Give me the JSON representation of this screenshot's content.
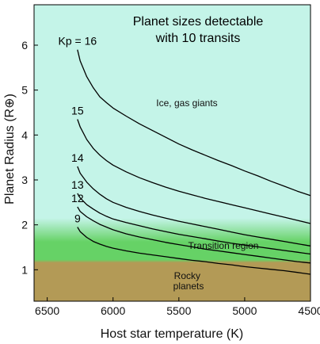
{
  "chart_data": {
    "type": "line",
    "title_lines": [
      "Planet sizes detectable",
      "with 10 transits"
    ],
    "xlabel": "Host star temperature (K)",
    "ylabel": "Planet Radius (R⊕)",
    "xlim": [
      6600,
      4500
    ],
    "ylim": [
      0.3,
      6.9
    ],
    "x_ticks": [
      6500,
      6000,
      5500,
      5000,
      4500
    ],
    "y_ticks": [
      1,
      2,
      3,
      4,
      5,
      6
    ],
    "regions": [
      {
        "label": "Ice, gas giants",
        "y_from": 2.2,
        "y_to": 6.9,
        "color": "#c4f4e8"
      },
      {
        "label": "Transition region",
        "y_from": 1.2,
        "y_to": 2.2,
        "color": "#66d266"
      },
      {
        "label": "Rocky planets",
        "y_from": 0.3,
        "y_to": 1.2,
        "color": "#b39a56"
      }
    ],
    "region_label_lines": {
      "giants": [
        "Ice, gas giants"
      ],
      "transition": [
        "Transition region"
      ],
      "rocky": [
        "Rocky",
        "planets"
      ]
    },
    "series": [
      {
        "label": "Kp = 16",
        "x": [
          6270,
          6250,
          6200,
          6150,
          6100,
          6050,
          6000,
          5900,
          5800,
          5700,
          5600,
          5500,
          5400,
          5300,
          5200,
          5100,
          5000,
          4900,
          4800,
          4700,
          4600,
          4500
        ],
        "y": [
          5.9,
          5.65,
          5.3,
          5.05,
          4.85,
          4.72,
          4.6,
          4.42,
          4.25,
          4.1,
          3.95,
          3.8,
          3.67,
          3.55,
          3.43,
          3.32,
          3.2,
          3.09,
          2.97,
          2.86,
          2.75,
          2.65
        ]
      },
      {
        "label": "15",
        "x": [
          6270,
          6250,
          6200,
          6150,
          6100,
          6050,
          6000,
          5900,
          5800,
          5700,
          5600,
          5500,
          5400,
          5300,
          5200,
          5100,
          5000,
          4900,
          4800,
          4700,
          4600,
          4500
        ],
        "y": [
          4.35,
          4.18,
          3.9,
          3.7,
          3.55,
          3.43,
          3.33,
          3.18,
          3.05,
          2.94,
          2.84,
          2.75,
          2.67,
          2.59,
          2.52,
          2.45,
          2.38,
          2.31,
          2.24,
          2.17,
          2.1,
          2.03
        ]
      },
      {
        "label": "14",
        "x": [
          6270,
          6250,
          6200,
          6150,
          6100,
          6050,
          6000,
          5900,
          5800,
          5700,
          5600,
          5500,
          5400,
          5300,
          5200,
          5100,
          5000,
          4900,
          4800,
          4700,
          4600,
          4500
        ],
        "y": [
          3.3,
          3.15,
          2.95,
          2.8,
          2.68,
          2.58,
          2.5,
          2.39,
          2.3,
          2.22,
          2.15,
          2.08,
          2.02,
          1.96,
          1.9,
          1.84,
          1.78,
          1.73,
          1.68,
          1.63,
          1.58,
          1.53
        ]
      },
      {
        "label": "13",
        "x": [
          6270,
          6250,
          6200,
          6150,
          6100,
          6050,
          6000,
          5900,
          5800,
          5700,
          5600,
          5500,
          5400,
          5300,
          5200,
          5100,
          5000,
          4900,
          4800,
          4700,
          4600,
          4500
        ],
        "y": [
          2.7,
          2.6,
          2.45,
          2.35,
          2.26,
          2.19,
          2.13,
          2.05,
          1.98,
          1.91,
          1.85,
          1.79,
          1.74,
          1.69,
          1.64,
          1.59,
          1.55,
          1.51,
          1.47,
          1.43,
          1.39,
          1.35
        ]
      },
      {
        "label": "12",
        "x": [
          6270,
          6250,
          6200,
          6150,
          6100,
          6050,
          6000,
          5900,
          5800,
          5700,
          5600,
          5500,
          5400,
          5300,
          5200,
          5100,
          5000,
          4900,
          4800,
          4700,
          4600,
          4500
        ],
        "y": [
          2.4,
          2.3,
          2.18,
          2.09,
          2.01,
          1.95,
          1.89,
          1.8,
          1.73,
          1.67,
          1.61,
          1.56,
          1.51,
          1.46,
          1.42,
          1.38,
          1.34,
          1.3,
          1.26,
          1.22,
          1.18,
          1.15
        ]
      },
      {
        "label": "9",
        "x": [
          6270,
          6250,
          6200,
          6150,
          6100,
          6050,
          6000,
          5900,
          5800,
          5700,
          5600,
          5500,
          5400,
          5300,
          5200,
          5100,
          5000,
          4900,
          4800,
          4700,
          4600,
          4500
        ],
        "y": [
          1.95,
          1.85,
          1.72,
          1.63,
          1.57,
          1.52,
          1.48,
          1.42,
          1.37,
          1.33,
          1.29,
          1.25,
          1.21,
          1.18,
          1.14,
          1.11,
          1.07,
          1.04,
          1.01,
          0.98,
          0.94,
          0.9
        ]
      }
    ],
    "grid": false,
    "legend": "none"
  }
}
